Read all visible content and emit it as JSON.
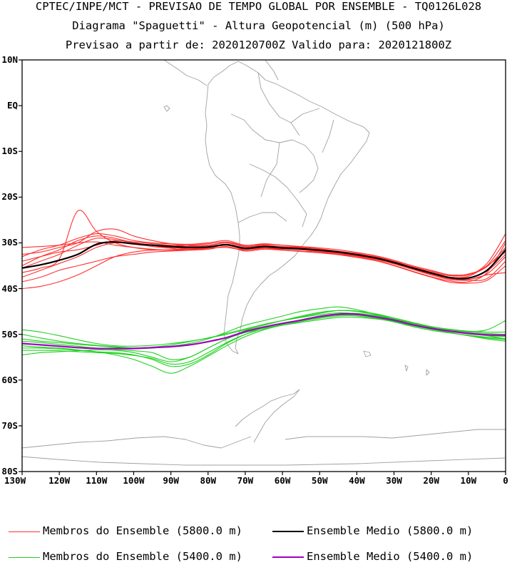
{
  "titles": {
    "line1": "CPTEC/INPE/MCT - PREVISAO DE TEMPO GLOBAL POR ENSEMBLE - TQ0126L028",
    "line2": "Diagrama \"Spaguetti\" - Altura Geopotencial (m) (500 hPa)",
    "line3": "Previsao a partir de: 2020120700Z  Valido para: 2020121800Z"
  },
  "map": {
    "lat_range": [
      -80,
      10
    ],
    "lon_range": [
      -130,
      0
    ],
    "lat_labels": [
      "10N",
      "EQ",
      "10S",
      "20S",
      "30S",
      "40S",
      "50S",
      "60S",
      "70S",
      "80S"
    ],
    "lon_labels": [
      "130W",
      "120W",
      "110W",
      "100W",
      "90W",
      "80W",
      "70W",
      "60W",
      "50W",
      "40W",
      "30W",
      "20W",
      "10W",
      "0"
    ],
    "coastline_color": "#a0a0a0"
  },
  "legend": {
    "members_5800": "Membros do Ensemble (5800.0 m)",
    "mean_5800": "Ensemble Medio (5800.0 m)",
    "members_5400": "Membros do Ensemble (5400.0 m)",
    "mean_5400": "Ensemble Medio (5400.0 m)"
  },
  "colors": {
    "members_5800": "#ff3030",
    "mean_5800": "#000000",
    "members_5400": "#20d020",
    "mean_5400": "#a000c0"
  },
  "contours": {
    "lons": [
      -130,
      -125,
      -120,
      -115,
      -110,
      -105,
      -100,
      -95,
      -90,
      -85,
      -80,
      -75,
      -70,
      -65,
      -60,
      -55,
      -50,
      -45,
      -40,
      -35,
      -30,
      -25,
      -20,
      -15,
      -10,
      -5,
      0
    ],
    "mean_5800": [
      -35.5,
      -34.8,
      -33.8,
      -32.5,
      -30.3,
      -29.8,
      -30.2,
      -30.5,
      -30.8,
      -31.0,
      -30.9,
      -30.4,
      -31.2,
      -30.8,
      -31.1,
      -31.3,
      -31.6,
      -32.0,
      -32.6,
      -33.3,
      -34.3,
      -35.5,
      -36.6,
      -37.6,
      -37.7,
      -36.0,
      -31.5
    ],
    "mean_5400": [
      -52.0,
      -52.3,
      -52.6,
      -52.9,
      -53.1,
      -53.1,
      -53.1,
      -52.9,
      -52.7,
      -52.3,
      -51.6,
      -50.7,
      -49.4,
      -48.4,
      -47.6,
      -46.9,
      -46.1,
      -45.6,
      -45.6,
      -46.2,
      -46.9,
      -47.9,
      -48.7,
      -49.3,
      -49.8,
      -50.1,
      -50.2
    ],
    "members_5800": [
      [
        -35.0,
        -33.0,
        -31.5,
        -29.5,
        -28.5,
        -29.0,
        -30.0,
        -30.5,
        -30.6,
        -30.5,
        -30.2,
        -29.8,
        -30.6,
        -30.3,
        -30.5,
        -30.8,
        -31.1,
        -31.5,
        -32.1,
        -32.8,
        -33.8,
        -35.0,
        -36.0,
        -37.0,
        -37.0,
        -34.5,
        -28.0
      ],
      [
        -36.5,
        -35.5,
        -33.5,
        -23.0,
        -27.5,
        -30.0,
        -31.0,
        -31.5,
        -31.5,
        -31.2,
        -31.0,
        -30.5,
        -31.5,
        -31.2,
        -31.5,
        -31.8,
        -32.0,
        -32.5,
        -33.0,
        -33.8,
        -34.9,
        -36.2,
        -37.4,
        -38.3,
        -38.5,
        -36.5,
        -30.0
      ],
      [
        -40.0,
        -39.5,
        -38.5,
        -37.0,
        -35.0,
        -33.0,
        -32.0,
        -31.6,
        -31.6,
        -31.4,
        -31.2,
        -31.0,
        -31.6,
        -31.2,
        -31.3,
        -31.5,
        -31.8,
        -32.3,
        -32.9,
        -33.6,
        -34.6,
        -35.8,
        -37.0,
        -38.0,
        -38.2,
        -37.8,
        -34.0
      ],
      [
        -33.0,
        -31.5,
        -30.5,
        -29.0,
        -28.0,
        -28.5,
        -29.5,
        -30.0,
        -30.2,
        -30.3,
        -30.0,
        -29.5,
        -30.5,
        -30.2,
        -30.5,
        -30.9,
        -31.3,
        -31.8,
        -32.4,
        -33.2,
        -34.3,
        -35.5,
        -36.6,
        -37.5,
        -37.3,
        -35.0,
        -32.0
      ],
      [
        -37.5,
        -36.0,
        -34.5,
        -33.0,
        -31.0,
        -30.0,
        -30.3,
        -30.8,
        -31.2,
        -31.5,
        -31.2,
        -30.5,
        -31.5,
        -31.0,
        -31.3,
        -31.5,
        -31.9,
        -32.3,
        -32.9,
        -33.6,
        -34.6,
        -35.8,
        -37.0,
        -38.0,
        -38.0,
        -36.8,
        -33.0
      ],
      [
        -34.0,
        -33.0,
        -32.0,
        -31.5,
        -30.5,
        -29.5,
        -29.8,
        -30.2,
        -30.5,
        -30.8,
        -30.6,
        -30.0,
        -30.8,
        -30.5,
        -30.8,
        -31.0,
        -31.4,
        -31.8,
        -32.4,
        -33.1,
        -34.1,
        -35.3,
        -36.4,
        -37.2,
        -37.0,
        -35.2,
        -31.0
      ],
      [
        -31.0,
        -30.8,
        -30.5,
        -30.0,
        -29.8,
        -30.5,
        -31.0,
        -31.4,
        -31.6,
        -31.5,
        -31.0,
        -30.3,
        -31.3,
        -30.9,
        -31.2,
        -31.5,
        -31.8,
        -32.2,
        -32.8,
        -33.5,
        -34.5,
        -35.7,
        -36.8,
        -37.8,
        -38.0,
        -37.0,
        -36.5
      ],
      [
        -38.5,
        -37.5,
        -36.0,
        -35.0,
        -34.0,
        -33.0,
        -32.5,
        -32.0,
        -31.8,
        -31.6,
        -31.4,
        -30.8,
        -31.8,
        -31.4,
        -31.6,
        -31.9,
        -32.2,
        -32.6,
        -33.2,
        -33.9,
        -35.0,
        -36.3,
        -37.5,
        -38.6,
        -38.8,
        -38.2,
        -35.0
      ],
      [
        -32.5,
        -32.0,
        -31.0,
        -30.0,
        -27.5,
        -27.0,
        -28.5,
        -29.5,
        -30.2,
        -30.6,
        -30.5,
        -30.0,
        -30.9,
        -30.6,
        -30.9,
        -31.1,
        -31.4,
        -31.8,
        -32.3,
        -33.0,
        -34.0,
        -35.2,
        -36.2,
        -37.0,
        -36.8,
        -35.0,
        -29.5
      ],
      [
        -35.5,
        -34.0,
        -32.5,
        -30.5,
        -29.0,
        -29.3,
        -30.0,
        -30.6,
        -31.0,
        -31.2,
        -31.0,
        -30.4,
        -31.2,
        -30.8,
        -31.1,
        -31.3,
        -31.7,
        -32.1,
        -32.7,
        -33.4,
        -34.4,
        -35.6,
        -36.7,
        -37.6,
        -37.6,
        -36.2,
        -32.5
      ]
    ],
    "members_5400": [
      [
        -51.5,
        -51.8,
        -52.2,
        -52.6,
        -53.0,
        -53.3,
        -53.6,
        -54.0,
        -55.5,
        -55.0,
        -53.0,
        -51.0,
        -49.2,
        -48.0,
        -47.0,
        -46.0,
        -45.2,
        -44.8,
        -45.0,
        -45.8,
        -46.7,
        -47.6,
        -48.5,
        -49.2,
        -49.7,
        -50.2,
        -50.5
      ],
      [
        -53.0,
        -53.0,
        -53.2,
        -53.5,
        -53.8,
        -54.0,
        -54.5,
        -55.5,
        -57.0,
        -56.5,
        -54.5,
        -52.0,
        -50.0,
        -48.5,
        -47.6,
        -46.8,
        -46.0,
        -45.5,
        -45.4,
        -46.0,
        -46.8,
        -47.8,
        -48.6,
        -49.3,
        -49.9,
        -50.3,
        -51.0
      ],
      [
        -50.0,
        -50.8,
        -51.5,
        -52.0,
        -52.4,
        -52.7,
        -53.0,
        -53.0,
        -52.6,
        -52.0,
        -51.0,
        -49.5,
        -48.0,
        -47.0,
        -46.0,
        -45.0,
        -44.4,
        -44.0,
        -44.6,
        -45.6,
        -46.6,
        -47.5,
        -48.3,
        -48.9,
        -49.3,
        -49.5,
        -49.5
      ],
      [
        -54.5,
        -54.0,
        -53.8,
        -53.6,
        -53.4,
        -53.5,
        -54.0,
        -55.0,
        -56.0,
        -55.0,
        -53.0,
        -51.0,
        -49.6,
        -48.6,
        -48.0,
        -47.4,
        -46.8,
        -46.3,
        -46.3,
        -46.6,
        -47.2,
        -48.1,
        -48.9,
        -49.6,
        -50.3,
        -51.0,
        -51.5
      ],
      [
        -49.0,
        -49.5,
        -50.3,
        -51.2,
        -52.0,
        -52.5,
        -52.6,
        -52.4,
        -52.0,
        -51.5,
        -50.8,
        -49.8,
        -48.8,
        -47.8,
        -47.0,
        -46.3,
        -45.7,
        -45.3,
        -45.5,
        -46.0,
        -46.9,
        -47.9,
        -48.7,
        -49.2,
        -49.4,
        -49.0,
        -47.0
      ],
      [
        -52.5,
        -52.8,
        -53.0,
        -53.4,
        -53.8,
        -54.5,
        -55.5,
        -57.0,
        -58.5,
        -57.0,
        -54.8,
        -52.5,
        -50.5,
        -49.0,
        -48.0,
        -47.2,
        -46.5,
        -46.0,
        -46.0,
        -46.5,
        -47.3,
        -48.3,
        -49.1,
        -49.7,
        -50.2,
        -50.6,
        -51.0
      ],
      [
        -51.0,
        -51.5,
        -51.8,
        -52.2,
        -52.5,
        -52.8,
        -53.0,
        -52.8,
        -52.3,
        -51.6,
        -50.8,
        -50.0,
        -49.0,
        -48.0,
        -47.0,
        -46.2,
        -45.4,
        -44.8,
        -44.9,
        -45.5,
        -46.4,
        -47.4,
        -48.3,
        -49.0,
        -49.5,
        -49.8,
        -50.0
      ],
      [
        -53.5,
        -53.5,
        -53.6,
        -53.8,
        -54.0,
        -54.2,
        -54.6,
        -55.3,
        -56.5,
        -56.0,
        -54.0,
        -51.8,
        -50.0,
        -48.8,
        -47.8,
        -47.0,
        -46.3,
        -45.8,
        -45.8,
        -46.3,
        -47.1,
        -48.0,
        -48.8,
        -49.6,
        -50.3,
        -50.8,
        -51.2
      ]
    ]
  }
}
